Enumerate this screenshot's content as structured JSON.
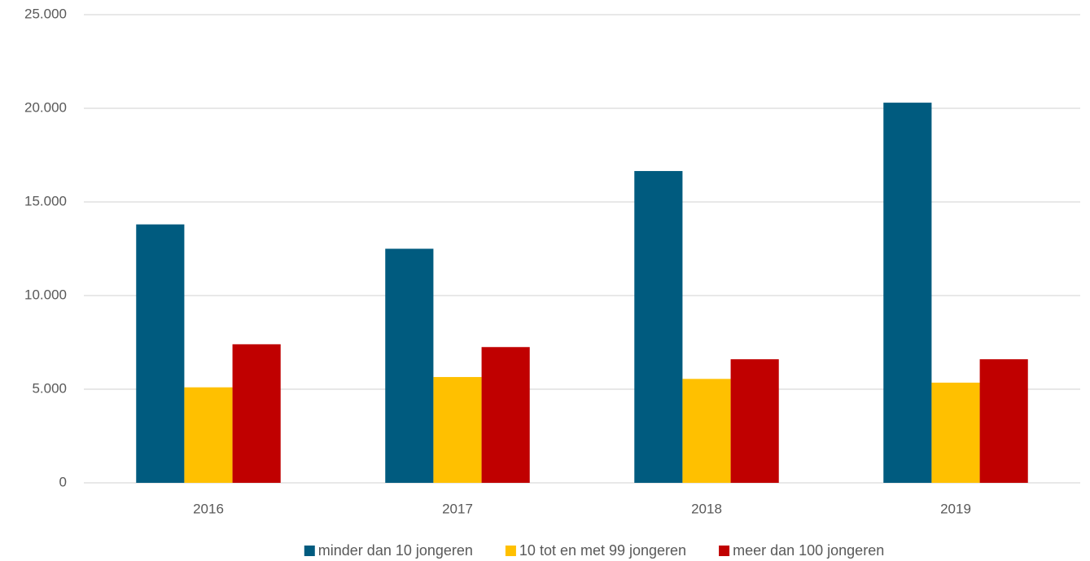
{
  "chart_data": {
    "type": "bar",
    "categories": [
      "2016",
      "2017",
      "2018",
      "2019"
    ],
    "series": [
      {
        "name": "minder dan 10 jongeren",
        "color": "#005b7f",
        "values": [
          13800,
          12500,
          16650,
          20300
        ]
      },
      {
        "name": "10 tot en met 99 jongeren",
        "color": "#ffc000",
        "values": [
          5100,
          5650,
          5550,
          5350
        ]
      },
      {
        "name": "meer dan 100 jongeren",
        "color": "#c00000",
        "values": [
          7400,
          7250,
          6600,
          6600
        ]
      }
    ],
    "ylim": [
      0,
      25000
    ],
    "yticks": [
      0,
      {
        "value": 5000,
        "label": "5.000"
      },
      {
        "value": 10000,
        "label": "10.000"
      },
      {
        "value": 15000,
        "label": "15.000"
      },
      {
        "value": 20000,
        "label": "20.000"
      },
      {
        "value": 25000,
        "label": "25.000"
      }
    ],
    "grid": true,
    "legend": "bottom"
  }
}
